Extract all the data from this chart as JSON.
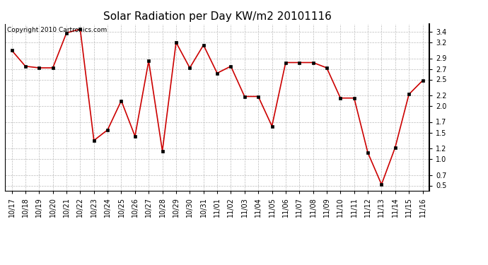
{
  "title": "Solar Radiation per Day KW/m2 20101116",
  "copyright_text": "Copyright 2010 Cartronics.com",
  "labels": [
    "10/17",
    "10/18",
    "10/19",
    "10/20",
    "10/21",
    "10/22",
    "10/23",
    "10/24",
    "10/25",
    "10/26",
    "10/27",
    "10/28",
    "10/29",
    "10/30",
    "10/31",
    "11/01",
    "11/02",
    "11/03",
    "11/04",
    "11/05",
    "11/06",
    "11/07",
    "11/08",
    "11/09",
    "11/10",
    "11/11",
    "11/12",
    "11/13",
    "11/14",
    "11/15",
    "11/16"
  ],
  "values": [
    3.05,
    2.75,
    2.72,
    2.72,
    3.38,
    3.45,
    1.35,
    1.55,
    2.1,
    1.43,
    2.85,
    1.15,
    3.2,
    2.72,
    3.15,
    2.62,
    2.75,
    2.18,
    2.18,
    1.62,
    2.82,
    2.82,
    2.82,
    2.72,
    2.15,
    2.15,
    1.12,
    0.52,
    1.22,
    2.22,
    2.48
  ],
  "line_color": "#cc0000",
  "marker_facecolor": "#000000",
  "marker_edgecolor": "#000000",
  "marker_style": "s",
  "marker_size": 3,
  "background_color": "#ffffff",
  "grid_color": "#bbbbbb",
  "ylim": [
    0.4,
    3.55
  ],
  "yticks": [
    0.5,
    0.7,
    1.0,
    1.2,
    1.5,
    1.7,
    2.0,
    2.2,
    2.5,
    2.7,
    2.9,
    3.2,
    3.4
  ],
  "title_fontsize": 11,
  "tick_fontsize": 7,
  "copyright_fontsize": 6.5,
  "fig_width": 6.9,
  "fig_height": 3.75,
  "dpi": 100
}
